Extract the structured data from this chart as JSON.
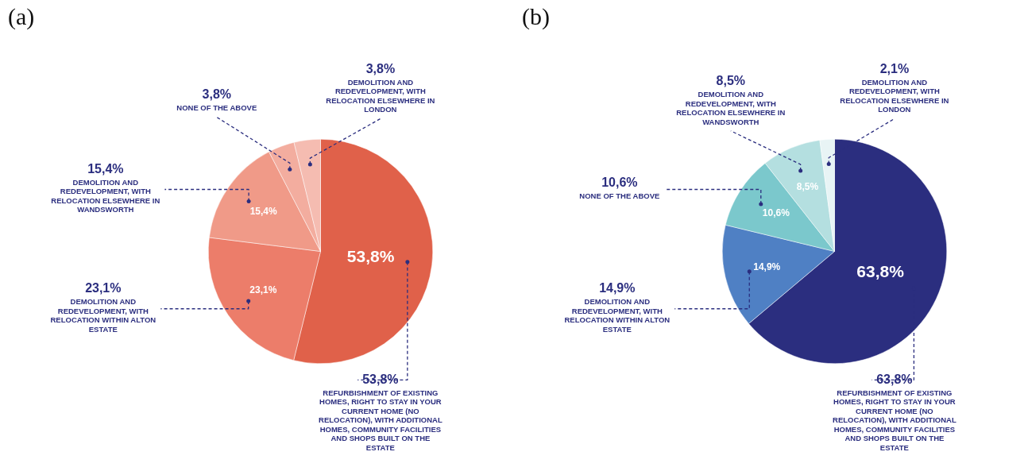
{
  "chart_data": [
    {
      "type": "pie",
      "title": "(a)",
      "categories": [
        "REFURBISHMENT OF EXISTING HOMES, RIGHT TO STAY IN YOUR CURRENT HOME (NO RELOCATION), WITH ADDITIONAL HOMES, COMMUNITY FACILITIES AND SHOPS BUILT ON THE ESTATE",
        "DEMOLITION AND REDEVELOPMENT, WITH RELOCATION WITHIN ALTON ESTATE",
        "DEMOLITION AND REDEVELOPMENT, WITH RELOCATION ELSEWHERE IN WANDSWORTH",
        "NONE OF THE ABOVE",
        "DEMOLITION AND REDEVELOPMENT, WITH RELOCATION ELSEWHERE IN LONDON"
      ],
      "values": [
        53.8,
        23.1,
        15.4,
        3.8,
        3.8
      ],
      "value_labels": [
        "53,8%",
        "23,1%",
        "15,4%",
        "3,8%",
        "3,8%"
      ],
      "colors": [
        "#e0614a",
        "#ec7d6a",
        "#f09a88",
        "#f3ad9f",
        "#f5bcb1"
      ]
    },
    {
      "type": "pie",
      "title": "(b)",
      "categories": [
        "REFURBISHMENT OF EXISTING HOMES, RIGHT TO STAY IN YOUR CURRENT HOME (NO RELOCATION), WITH ADDITIONAL HOMES, COMMUNITY FACILITIES AND SHOPS BUILT ON THE ESTATE",
        "DEMOLITION AND REDEVELOPMENT, WITH RELOCATION WITHIN ALTON ESTATE",
        "NONE OF THE ABOVE",
        "DEMOLITION AND REDEVELOPMENT, WITH RELOCATION ELSEWHERE IN WANDSWORTH",
        "DEMOLITION AND REDEVELOPMENT, WITH RELOCATION ELSEWHERE IN LONDON"
      ],
      "values": [
        63.8,
        14.9,
        10.6,
        8.5,
        2.1
      ],
      "value_labels": [
        "63,8%",
        "14,9%",
        "10,6%",
        "8,5%",
        "2,1%"
      ],
      "colors": [
        "#2b2e7f",
        "#4f80c4",
        "#7bc8cc",
        "#b4dfe0",
        "#e8f4f5"
      ]
    }
  ]
}
